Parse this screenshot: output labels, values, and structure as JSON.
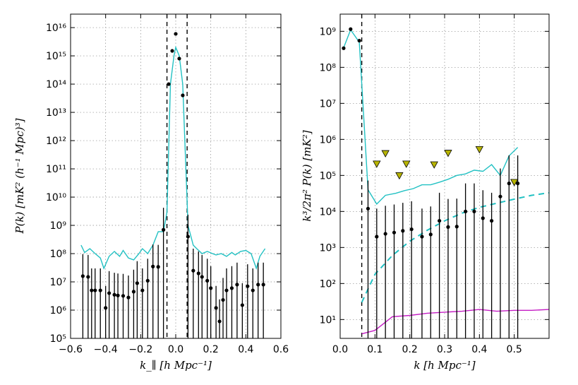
{
  "colors": {
    "model_curve": "#22c1c3",
    "noise_dashed": "#22c1c3",
    "foreground_floor": "#c41ec4",
    "upper_limits": "#b7b400",
    "points": "#000000"
  },
  "chart_data": [
    {
      "type": "line",
      "xlabel": "k_∥ [h Mpc⁻¹]",
      "ylabel": "P(k) [mK² (h⁻¹ Mpc)³]",
      "xlim": [
        -0.6,
        0.6
      ],
      "ylim": [
        100000,
        30000000000000000
      ],
      "yscale": "log",
      "grid": true,
      "x_ticks": [
        "−0.6",
        "−0.4",
        "−0.2",
        "0.0",
        "0.2",
        "0.4",
        "0.6"
      ],
      "y_ticks": [
        "10⁵",
        "10⁶",
        "10⁷",
        "10⁸",
        "10⁹",
        "10¹⁰",
        "10¹¹",
        "10¹²",
        "10¹³",
        "10¹⁴",
        "10¹⁵",
        "10¹⁶"
      ],
      "vlines": [
        -0.05,
        0.065
      ],
      "series": [
        {
          "kind": "line",
          "x": [
            -0.54,
            -0.52,
            -0.49,
            -0.46,
            -0.43,
            -0.41,
            -0.38,
            -0.35,
            -0.32,
            -0.3,
            -0.27,
            -0.24,
            -0.21,
            -0.19,
            -0.16,
            -0.13,
            -0.1,
            -0.07,
            -0.05,
            -0.03,
            -0.01,
            0.0,
            0.02,
            0.04,
            0.07,
            0.1,
            0.12,
            0.15,
            0.18,
            0.21,
            0.23,
            0.26,
            0.29,
            0.32,
            0.34,
            0.37,
            0.4,
            0.43,
            0.46,
            0.48,
            0.51
          ],
          "y": [
            200000000.0,
            110000000.0,
            150000000.0,
            100000000.0,
            70000000.0,
            30000000.0,
            80000000.0,
            120000000.0,
            80000000.0,
            130000000.0,
            70000000.0,
            60000000.0,
            100000000.0,
            150000000.0,
            100000000.0,
            200000000.0,
            600000000.0,
            600000000.0,
            3000000000.0,
            100000000000000.0,
            1000000000000000.0,
            2000000000000000.0,
            1000000000000000.0,
            100000000000000.0,
            1000000000.0,
            200000000.0,
            150000000.0,
            100000000.0,
            120000000.0,
            100000000.0,
            90000000.0,
            100000000.0,
            80000000.0,
            110000000.0,
            90000000.0,
            120000000.0,
            130000000.0,
            100000000.0,
            30000000.0,
            80000000.0,
            150000000.0
          ]
        },
        {
          "kind": "points",
          "x": [
            -0.53,
            -0.5,
            -0.48,
            -0.46,
            -0.43,
            -0.4,
            -0.38,
            -0.35,
            -0.33,
            -0.3,
            -0.27,
            -0.24,
            -0.22,
            -0.19,
            -0.16,
            -0.13,
            -0.1,
            -0.07,
            -0.04,
            -0.02,
            0.0,
            0.02,
            0.04,
            0.07,
            0.1,
            0.13,
            0.15,
            0.18,
            0.2,
            0.23,
            0.25,
            0.27,
            0.29,
            0.32,
            0.35,
            0.38,
            0.41,
            0.44,
            0.47,
            0.5
          ],
          "y": [
            16000000.0,
            15000000.0,
            5000000.0,
            5000000.0,
            5000000.0,
            1200000.0,
            4000000.0,
            3500000.0,
            3300000.0,
            3200000.0,
            2800000.0,
            4500000.0,
            9000000.0,
            5000000.0,
            11000000.0,
            35000000.0,
            34000000.0,
            700000000.0,
            100000000000000.0,
            1500000000000000.0,
            6000000000000000.0,
            800000000000000.0,
            40000000000000.0,
            400000000.0,
            25000000.0,
            20000000.0,
            15000000.0,
            11000000.0,
            6000000.0,
            1200000.0,
            400000.0,
            2300000.0,
            5000000.0,
            6000000.0,
            8000000.0,
            1500000.0,
            7000000.0,
            5000000.0,
            8000000.0,
            8000000.0
          ]
        }
      ]
    },
    {
      "type": "line",
      "xlabel": "k [h Mpc⁻¹]",
      "ylabel": "k³/2π² P(k) [mK²]",
      "xlim": [
        0.0,
        0.6
      ],
      "ylim": [
        3,
        3000000000
      ],
      "yscale": "log",
      "grid": true,
      "x_ticks": [
        "0.0",
        "0.1",
        "0.2",
        "0.3",
        "0.4",
        "0.5"
      ],
      "y_ticks": [
        "10¹",
        "10²",
        "10³",
        "10⁴",
        "10⁵",
        "10⁶",
        "10⁷",
        "10⁸",
        "10⁹"
      ],
      "vlines": [
        0.062
      ],
      "series": [
        {
          "kind": "line",
          "x": [
            0.01,
            0.03,
            0.055,
            0.08,
            0.105,
            0.13,
            0.16,
            0.185,
            0.21,
            0.235,
            0.26,
            0.285,
            0.31,
            0.335,
            0.36,
            0.385,
            0.41,
            0.435,
            0.46,
            0.485,
            0.51
          ],
          "y": [
            350000000.0,
            1100000000.0,
            500000000.0,
            40000.0,
            16000.0,
            28000.0,
            32000.0,
            38000.0,
            43000.0,
            55000.0,
            55000.0,
            65000.0,
            78000.0,
            100000.0,
            110000.0,
            140000.0,
            130000.0,
            200000.0,
            100000.0,
            350000.0,
            600000.0
          ]
        },
        {
          "kind": "dashed",
          "x": [
            0.062,
            0.1,
            0.15,
            0.2,
            0.25,
            0.3,
            0.35,
            0.4,
            0.45,
            0.5,
            0.55,
            0.6
          ],
          "y": [
            30,
            180,
            600,
            1500,
            3000,
            5500,
            9000,
            13000,
            17000,
            22000,
            28000,
            33000
          ]
        },
        {
          "kind": "line",
          "x": [
            0.062,
            0.1,
            0.15,
            0.2,
            0.25,
            0.3,
            0.35,
            0.4,
            0.45,
            0.5,
            0.55,
            0.6
          ],
          "y": [
            4,
            5,
            12,
            13,
            15,
            16,
            17,
            19,
            17,
            18,
            18,
            19
          ]
        },
        {
          "kind": "points",
          "x": [
            0.01,
            0.03,
            0.055,
            0.08,
            0.105,
            0.13,
            0.155,
            0.18,
            0.205,
            0.235,
            0.26,
            0.285,
            0.31,
            0.335,
            0.36,
            0.385,
            0.41,
            0.435,
            0.46,
            0.485,
            0.51
          ],
          "y": [
            340000000.0,
            1150000000.0,
            550000000.0,
            12000.0,
            2000.0,
            2400.0,
            2600.0,
            2900.0,
            3200.0,
            2000.0,
            2300.0,
            5500.0,
            3700.0,
            3800.0,
            10000.0,
            10000.0,
            6500.0,
            5500.0,
            26000.0,
            60000.0,
            60000.0
          ]
        },
        {
          "kind": "upper_limits",
          "x": [
            0.105,
            0.13,
            0.17,
            0.19,
            0.27,
            0.31,
            0.4,
            0.5
          ],
          "y": [
            210000.0,
            410000.0,
            100000.0,
            210000.0,
            200000.0,
            420000.0,
            530000.0,
            65000.0
          ]
        }
      ]
    }
  ]
}
